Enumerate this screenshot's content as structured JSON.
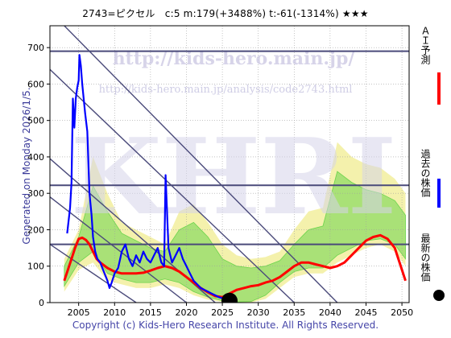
{
  "header": {
    "title": "2743=ピクセル　c:5  m:179(+3488%)  t:-61(-1314%)  ★★★"
  },
  "footer": {
    "copyright": "Copyright (c) Kids-Hero Research Institute. All Rights Reserved."
  },
  "side": {
    "generated": "Generated on Monday 2026/1/5."
  },
  "watermark": {
    "url1": "http://kids-hero.main.jp/",
    "url2": "http://kids-hero.main.jp/analysis/code2743.html",
    "big": "KHRI"
  },
  "legend": {
    "ai_label": "ＡＩ予測",
    "past_label": "過去の株価",
    "latest_label": "最新の株価"
  },
  "colors": {
    "ai": "#ff0000",
    "past": "#0000ff",
    "band_green": "#6cd44c",
    "band_yellow": "#f2ef9e",
    "trend": "#4a4a7a",
    "latest_dot": "#000000"
  },
  "chart_data": {
    "type": "line",
    "title": "2743=ピクセル　c:5  m:179(+3488%)  t:-61(-1314%)  ★★★",
    "xlim": [
      2001,
      2051
    ],
    "ylim": [
      0,
      760
    ],
    "x_ticks": [
      2005,
      2010,
      2015,
      2020,
      2025,
      2030,
      2035,
      2040,
      2045,
      2050
    ],
    "y_ticks": [
      0,
      100,
      200,
      300,
      400,
      500,
      600,
      700
    ],
    "hlines": [
      690,
      322,
      160
    ],
    "diagonals": [
      {
        "x": [
          2003,
          2041
        ],
        "y": [
          760,
          0
        ]
      },
      {
        "x": [
          2001,
          2035
        ],
        "y": [
          640,
          0
        ]
      },
      {
        "x": [
          2001,
          2024
        ],
        "y": [
          395,
          0
        ]
      },
      {
        "x": [
          2001,
          2020
        ],
        "y": [
          290,
          0
        ]
      },
      {
        "x": [
          2001,
          2013
        ],
        "y": [
          160,
          0
        ]
      }
    ],
    "series": [
      {
        "name": "過去の株価",
        "x": [
          2003.4,
          2003.8,
          2004.0,
          2004.2,
          2004.4,
          2004.6,
          2004.8,
          2005.0,
          2005.1,
          2005.3,
          2005.5,
          2005.7,
          2005.9,
          2006.2,
          2006.5,
          2006.8,
          2007.0,
          2007.3,
          2007.6,
          2008.0,
          2008.4,
          2008.8,
          2009.0,
          2009.3,
          2009.6,
          2010.0,
          2010.5,
          2011.0,
          2011.5,
          2012.0,
          2012.5,
          2013.0,
          2013.5,
          2014.0,
          2014.5,
          2015.0,
          2015.5,
          2016.0,
          2016.5,
          2016.9,
          2017.1,
          2017.5,
          2018.0,
          2018.5,
          2019.0,
          2019.5,
          2020.0,
          2020.5,
          2021.0,
          2021.5,
          2022.0,
          2022.5,
          2023.0,
          2023.5,
          2024.0,
          2024.5,
          2025.0,
          2025.5
        ],
        "y": [
          190,
          260,
          330,
          560,
          480,
          560,
          590,
          610,
          680,
          650,
          600,
          560,
          520,
          470,
          300,
          240,
          180,
          140,
          120,
          110,
          90,
          70,
          60,
          40,
          55,
          80,
          95,
          140,
          160,
          120,
          100,
          130,
          110,
          140,
          120,
          110,
          130,
          150,
          110,
          100,
          350,
          150,
          110,
          130,
          150,
          120,
          100,
          80,
          60,
          50,
          40,
          35,
          30,
          25,
          20,
          15,
          12,
          8
        ]
      },
      {
        "name": "ＡＩ予測",
        "x": [
          2003.0,
          2003.5,
          2004.0,
          2004.5,
          2005.0,
          2005.5,
          2006.0,
          2006.5,
          2007.0,
          2007.5,
          2008.0,
          2009.0,
          2010.0,
          2011.0,
          2012.0,
          2013.0,
          2014.0,
          2015.0,
          2016.0,
          2017.0,
          2018.0,
          2019.0,
          2020.0,
          2021.0,
          2022.0,
          2023.0,
          2024.0,
          2025.0,
          2026.0,
          2027.0,
          2028.0,
          2029.0,
          2030.0,
          2031.0,
          2032.0,
          2033.0,
          2034.0,
          2035.0,
          2036.0,
          2037.0,
          2038.0,
          2039.0,
          2040.0,
          2041.0,
          2042.0,
          2043.0,
          2044.0,
          2045.0,
          2046.0,
          2047.0,
          2048.0,
          2049.0,
          2050.0,
          2050.5
        ],
        "y": [
          60,
          90,
          120,
          150,
          175,
          178,
          172,
          160,
          140,
          120,
          110,
          95,
          85,
          80,
          80,
          80,
          82,
          88,
          95,
          100,
          95,
          85,
          70,
          55,
          40,
          28,
          18,
          15,
          25,
          35,
          40,
          45,
          48,
          55,
          60,
          70,
          85,
          100,
          110,
          110,
          105,
          100,
          95,
          100,
          110,
          130,
          150,
          170,
          180,
          185,
          175,
          150,
          90,
          60
        ]
      }
    ],
    "latest": {
      "x": 2026,
      "y": 5
    },
    "band_outer": {
      "x": [
        2003,
        2005,
        2007,
        2009,
        2011,
        2013,
        2015,
        2017,
        2019,
        2021,
        2023,
        2025,
        2027,
        2029,
        2031,
        2033,
        2035,
        2037,
        2039,
        2041,
        2043,
        2045,
        2047,
        2049,
        2050.5
      ],
      "upper": [
        120,
        200,
        400,
        300,
        220,
        200,
        180,
        160,
        250,
        270,
        220,
        160,
        130,
        120,
        125,
        140,
        200,
        250,
        260,
        440,
        400,
        380,
        370,
        340,
        300
      ],
      "lower": [
        30,
        90,
        110,
        60,
        50,
        40,
        40,
        50,
        40,
        20,
        8,
        2,
        0,
        0,
        10,
        40,
        70,
        80,
        80,
        110,
        130,
        150,
        160,
        140,
        100
      ]
    },
    "band_inner": {
      "x": [
        2003,
        2005,
        2007,
        2009,
        2011,
        2013,
        2015,
        2017,
        2019,
        2021,
        2023,
        2025,
        2027,
        2029,
        2031,
        2033,
        2035,
        2037,
        2039,
        2041,
        2043,
        2045,
        2047,
        2049,
        2050.5
      ],
      "upper": [
        100,
        180,
        320,
        250,
        190,
        170,
        150,
        140,
        200,
        220,
        180,
        120,
        100,
        95,
        100,
        115,
        160,
        200,
        210,
        360,
        330,
        310,
        300,
        280,
        240
      ],
      "lower": [
        45,
        110,
        140,
        80,
        65,
        55,
        55,
        65,
        55,
        30,
        15,
        5,
        2,
        3,
        20,
        55,
        85,
        95,
        95,
        130,
        150,
        170,
        175,
        160,
        120
      ]
    }
  }
}
